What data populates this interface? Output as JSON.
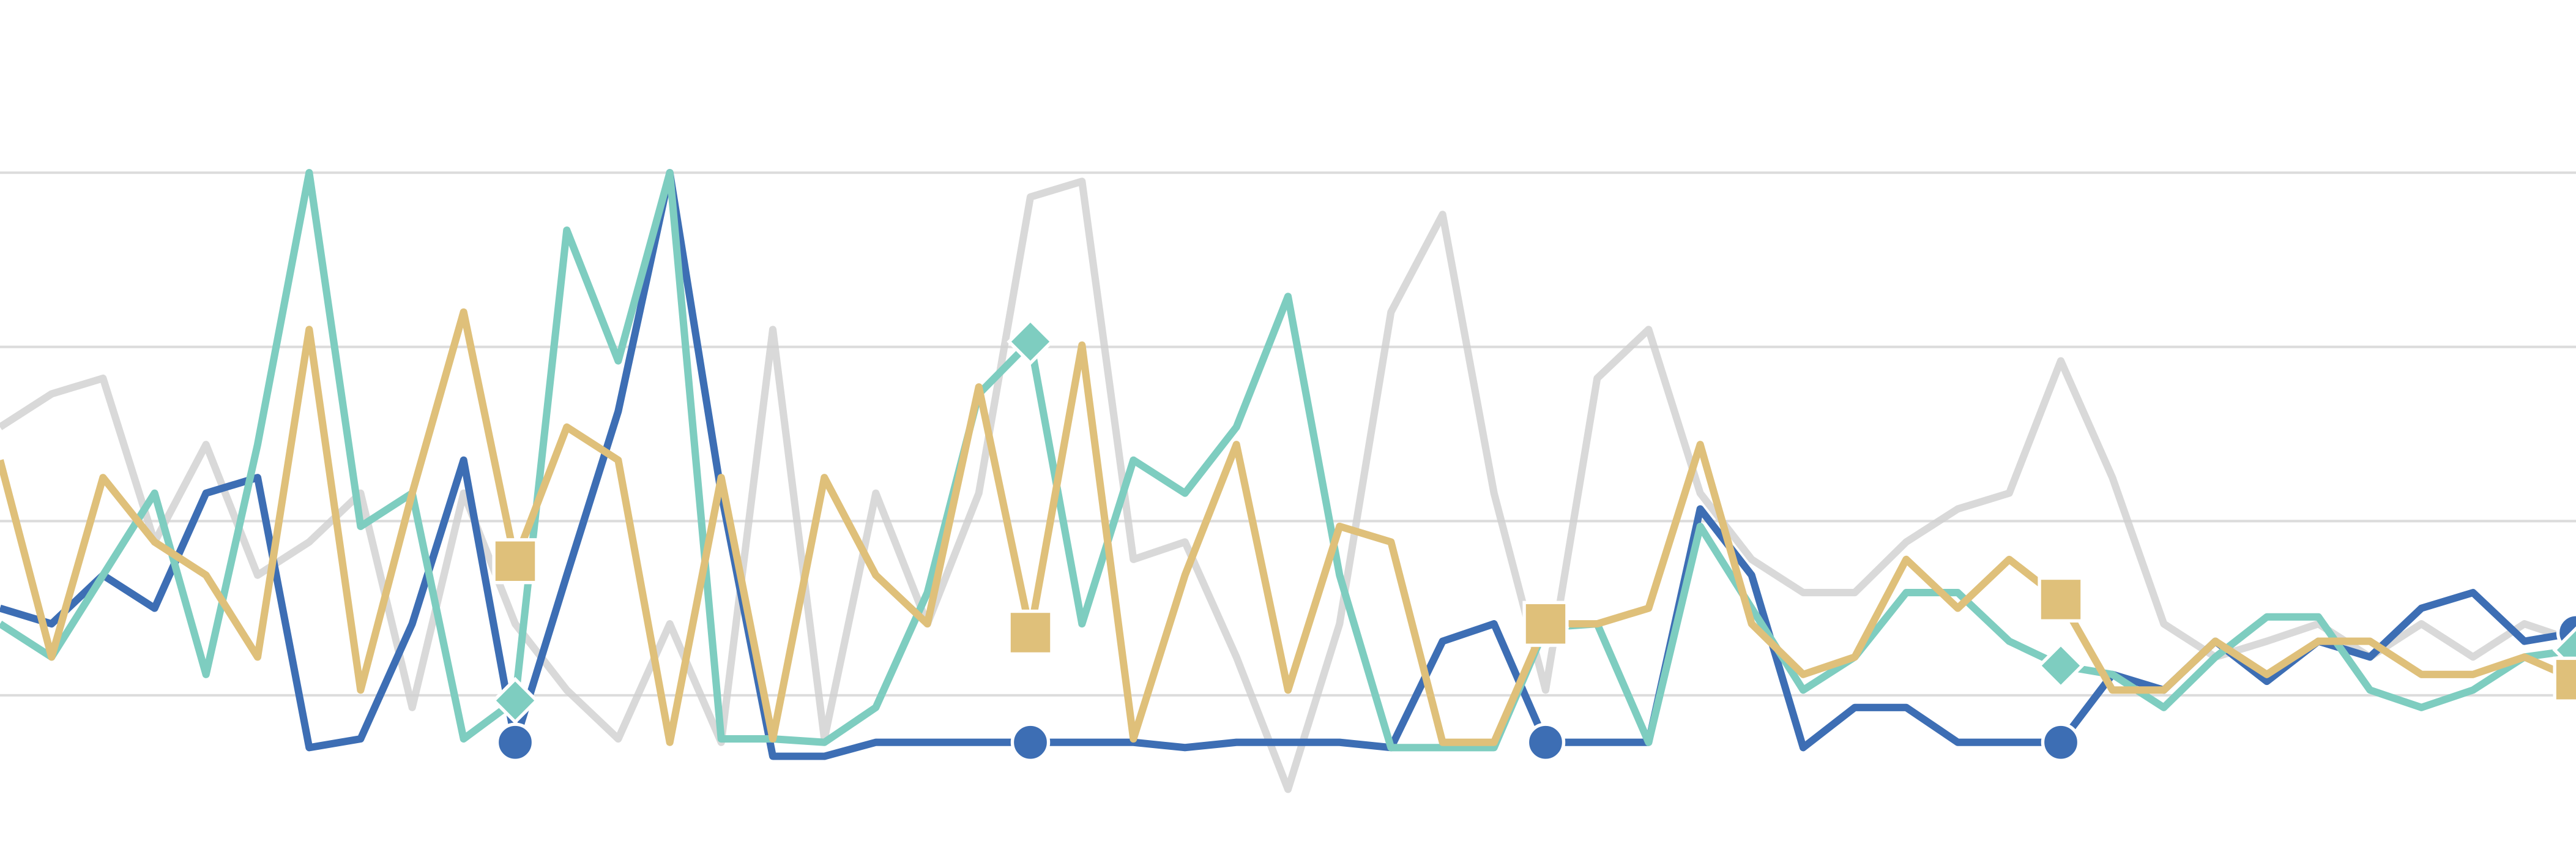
{
  "chart_data": {
    "type": "line",
    "x": [
      0,
      2,
      4,
      6,
      8,
      10,
      12,
      14,
      16,
      18,
      20,
      22,
      24,
      26,
      28,
      30,
      32,
      34,
      36,
      38,
      40,
      42,
      44,
      46,
      48,
      50,
      52,
      54,
      56,
      58,
      60,
      62,
      64,
      66,
      68,
      70,
      72,
      74,
      76,
      78,
      80,
      82,
      84,
      86,
      88,
      90,
      92,
      94,
      96,
      98,
      100
    ],
    "xlim": [
      0,
      100
    ],
    "ylim": [
      0,
      5
    ],
    "yticks": [
      1,
      2,
      3,
      4
    ],
    "grid": true,
    "marker_every": 10,
    "series": [
      {
        "color": "#cfcfcf",
        "marker": "none",
        "values": [
          2.54,
          2.73,
          2.82,
          1.88,
          2.44,
          1.69,
          1.88,
          2.16,
          0.93,
          2.16,
          1.41,
          1.03,
          0.75,
          1.41,
          0.73,
          3.1,
          0.75,
          2.16,
          1.41,
          2.16,
          3.86,
          3.95,
          1.78,
          1.88,
          1.22,
          0.46,
          1.41,
          3.2,
          3.76,
          2.16,
          1.03,
          2.82,
          3.1,
          2.16,
          1.78,
          1.59,
          1.59,
          1.88,
          2.07,
          2.16,
          2.92,
          2.25,
          1.41,
          1.22,
          1.31,
          1.41,
          1.22,
          1.41,
          1.22,
          1.41,
          1.31
        ]
      },
      {
        "color": "#3d6eb4",
        "marker": "circle",
        "values": [
          1.5,
          1.41,
          1.69,
          1.5,
          2.16,
          2.25,
          0.7,
          0.75,
          1.41,
          2.35,
          0.73,
          1.69,
          2.63,
          4.0,
          2.16,
          0.65,
          0.65,
          0.73,
          0.73,
          0.73,
          0.73,
          0.73,
          0.73,
          0.7,
          0.73,
          0.73,
          0.73,
          0.7,
          1.31,
          1.41,
          0.73,
          0.73,
          0.73,
          2.07,
          1.69,
          0.7,
          0.93,
          0.93,
          0.73,
          0.73,
          0.73,
          1.12,
          1.03,
          1.31,
          1.08,
          1.31,
          1.22,
          1.5,
          1.59,
          1.31,
          1.36
        ]
      },
      {
        "color": "#7ecdc0",
        "marker": "diamond",
        "values": [
          1.41,
          1.22,
          1.69,
          2.16,
          1.12,
          2.44,
          4.0,
          1.97,
          2.16,
          0.75,
          0.97,
          3.67,
          2.92,
          4.0,
          0.75,
          0.75,
          0.73,
          0.93,
          1.59,
          2.73,
          3.03,
          1.41,
          2.35,
          2.16,
          2.54,
          3.29,
          1.69,
          0.7,
          0.7,
          0.7,
          1.39,
          1.41,
          0.73,
          1.97,
          1.5,
          1.03,
          1.22,
          1.59,
          1.59,
          1.31,
          1.17,
          1.12,
          0.93,
          1.22,
          1.45,
          1.45,
          1.03,
          0.93,
          1.03,
          1.22,
          1.26
        ]
      },
      {
        "color": "#dfc07a",
        "marker": "square",
        "values": [
          2.35,
          1.22,
          2.25,
          1.88,
          1.69,
          1.22,
          3.1,
          1.03,
          2.16,
          3.2,
          1.77,
          2.54,
          2.35,
          0.73,
          2.25,
          0.75,
          2.25,
          1.69,
          1.41,
          2.77,
          1.36,
          3.01,
          0.75,
          1.69,
          2.44,
          1.03,
          1.97,
          1.88,
          0.73,
          0.73,
          1.41,
          1.41,
          1.5,
          2.44,
          1.41,
          1.12,
          1.22,
          1.78,
          1.5,
          1.78,
          1.55,
          1.03,
          1.03,
          1.31,
          1.12,
          1.31,
          1.31,
          1.12,
          1.12,
          1.22,
          1.09
        ]
      }
    ]
  }
}
